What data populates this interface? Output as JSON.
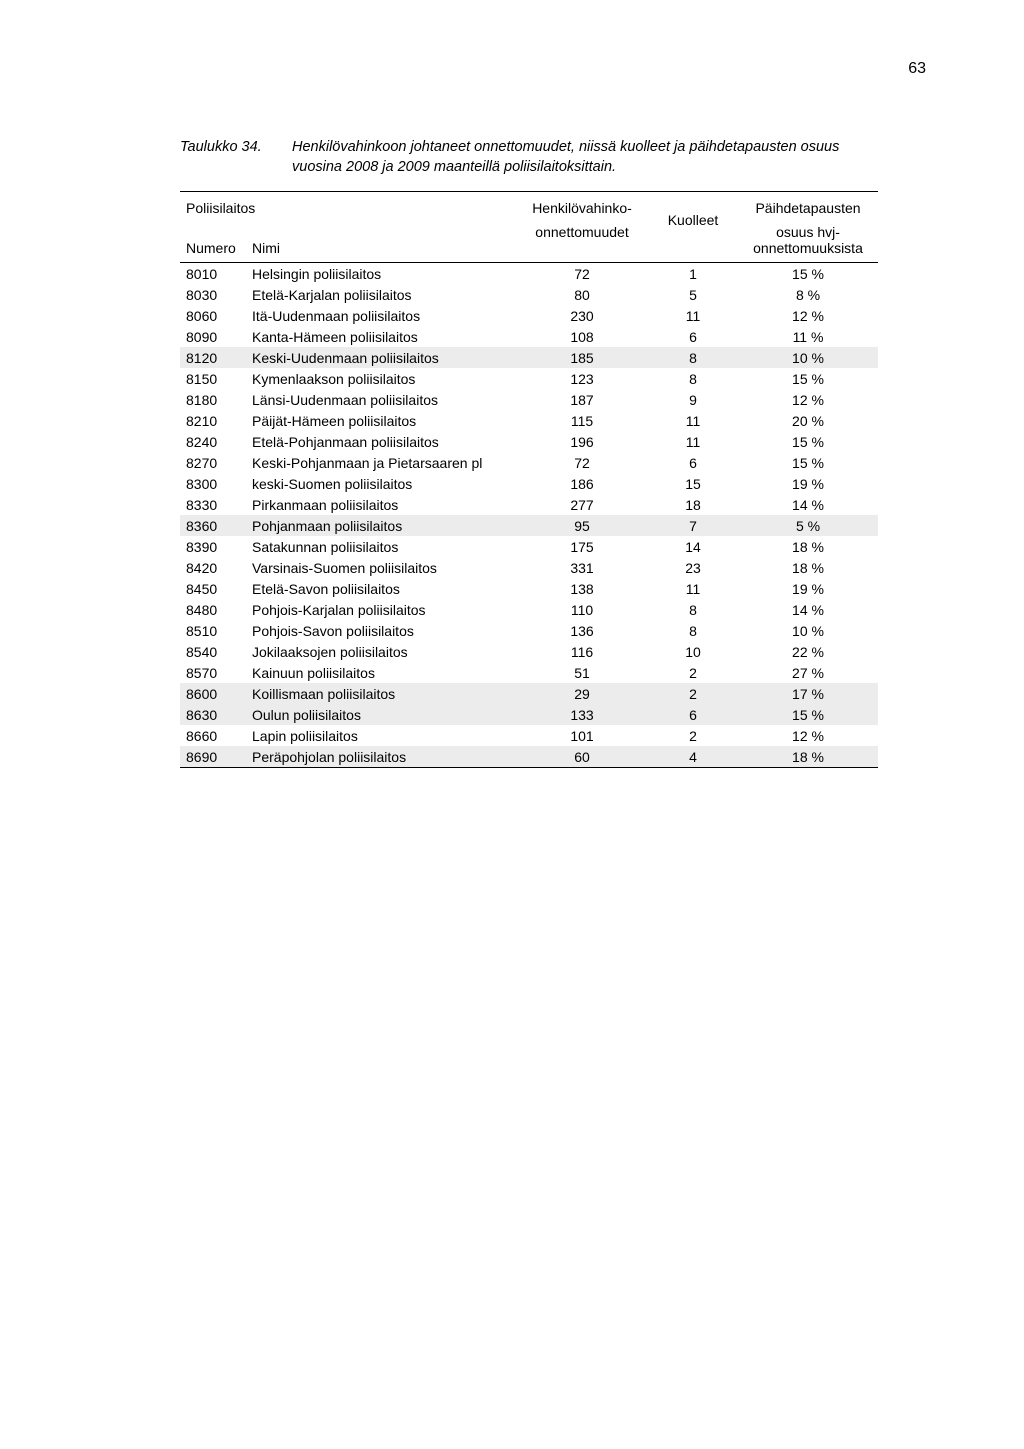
{
  "page_number": "63",
  "caption": {
    "label": "Taulukko 34.",
    "text": "Henkilövahinkoon johtaneet onnettomuudet, niissä kuolleet ja päihdetapausten osuus vuosina 2008 ja 2009 maanteillä poliisilaitoksittain."
  },
  "table": {
    "header_group": "Poliisilaitos",
    "columns": {
      "numero": "Numero",
      "nimi": "Nimi",
      "hvj1": "Henkilövahinko-",
      "hvj2": "onnettomuudet",
      "kuolleet": "Kuolleet",
      "paihde1": "Päihdetapausten",
      "paihde2": "osuus hvj-",
      "paihde3": "onnettomuuksista"
    },
    "rows": [
      {
        "numero": "8010",
        "nimi": "Helsingin poliisilaitos",
        "hvj": "72",
        "kuolleet": "1",
        "paihde": "15 %",
        "shaded": false
      },
      {
        "numero": "8030",
        "nimi": "Etelä-Karjalan poliisilaitos",
        "hvj": "80",
        "kuolleet": "5",
        "paihde": "8 %",
        "shaded": false
      },
      {
        "numero": "8060",
        "nimi": "Itä-Uudenmaan poliisilaitos",
        "hvj": "230",
        "kuolleet": "11",
        "paihde": "12 %",
        "shaded": false
      },
      {
        "numero": "8090",
        "nimi": "Kanta-Hämeen poliisilaitos",
        "hvj": "108",
        "kuolleet": "6",
        "paihde": "11 %",
        "shaded": false
      },
      {
        "numero": "8120",
        "nimi": "Keski-Uudenmaan poliisilaitos",
        "hvj": "185",
        "kuolleet": "8",
        "paihde": "10 %",
        "shaded": true
      },
      {
        "numero": "8150",
        "nimi": "Kymenlaakson poliisilaitos",
        "hvj": "123",
        "kuolleet": "8",
        "paihde": "15 %",
        "shaded": false
      },
      {
        "numero": "8180",
        "nimi": "Länsi-Uudenmaan poliisilaitos",
        "hvj": "187",
        "kuolleet": "9",
        "paihde": "12 %",
        "shaded": false
      },
      {
        "numero": "8210",
        "nimi": "Päijät-Hämeen poliisilaitos",
        "hvj": "115",
        "kuolleet": "11",
        "paihde": "20 %",
        "shaded": false
      },
      {
        "numero": "8240",
        "nimi": "Etelä-Pohjanmaan poliisilaitos",
        "hvj": "196",
        "kuolleet": "11",
        "paihde": "15 %",
        "shaded": false
      },
      {
        "numero": "8270",
        "nimi": "Keski-Pohjanmaan ja Pietarsaaren pl",
        "hvj": "72",
        "kuolleet": "6",
        "paihde": "15 %",
        "shaded": false
      },
      {
        "numero": "8300",
        "nimi": "keski-Suomen poliisilaitos",
        "hvj": "186",
        "kuolleet": "15",
        "paihde": "19 %",
        "shaded": false
      },
      {
        "numero": "8330",
        "nimi": "Pirkanmaan poliisilaitos",
        "hvj": "277",
        "kuolleet": "18",
        "paihde": "14 %",
        "shaded": false
      },
      {
        "numero": "8360",
        "nimi": "Pohjanmaan poliisilaitos",
        "hvj": "95",
        "kuolleet": "7",
        "paihde": "5 %",
        "shaded": true
      },
      {
        "numero": "8390",
        "nimi": "Satakunnan poliisilaitos",
        "hvj": "175",
        "kuolleet": "14",
        "paihde": "18 %",
        "shaded": false
      },
      {
        "numero": "8420",
        "nimi": "Varsinais-Suomen poliisilaitos",
        "hvj": "331",
        "kuolleet": "23",
        "paihde": "18 %",
        "shaded": false
      },
      {
        "numero": "8450",
        "nimi": "Etelä-Savon poliisilaitos",
        "hvj": "138",
        "kuolleet": "11",
        "paihde": "19 %",
        "shaded": false
      },
      {
        "numero": "8480",
        "nimi": "Pohjois-Karjalan poliisilaitos",
        "hvj": "110",
        "kuolleet": "8",
        "paihde": "14 %",
        "shaded": false
      },
      {
        "numero": "8510",
        "nimi": "Pohjois-Savon poliisilaitos",
        "hvj": "136",
        "kuolleet": "8",
        "paihde": "10 %",
        "shaded": false
      },
      {
        "numero": "8540",
        "nimi": "Jokilaaksojen poliisilaitos",
        "hvj": "116",
        "kuolleet": "10",
        "paihde": "22 %",
        "shaded": false
      },
      {
        "numero": "8570",
        "nimi": "Kainuun poliisilaitos",
        "hvj": "51",
        "kuolleet": "2",
        "paihde": "27 %",
        "shaded": false
      },
      {
        "numero": "8600",
        "nimi": "Koillismaan poliisilaitos",
        "hvj": "29",
        "kuolleet": "2",
        "paihde": "17 %",
        "shaded": true
      },
      {
        "numero": "8630",
        "nimi": "Oulun poliisilaitos",
        "hvj": "133",
        "kuolleet": "6",
        "paihde": "15 %",
        "shaded": true
      },
      {
        "numero": "8660",
        "nimi": "Lapin poliisilaitos",
        "hvj": "101",
        "kuolleet": "2",
        "paihde": "12 %",
        "shaded": false
      },
      {
        "numero": "8690",
        "nimi": "Peräpohjolan poliisilaitos",
        "hvj": "60",
        "kuolleet": "4",
        "paihde": "18 %",
        "shaded": true
      }
    ]
  },
  "shaded_bg": "#ececec"
}
